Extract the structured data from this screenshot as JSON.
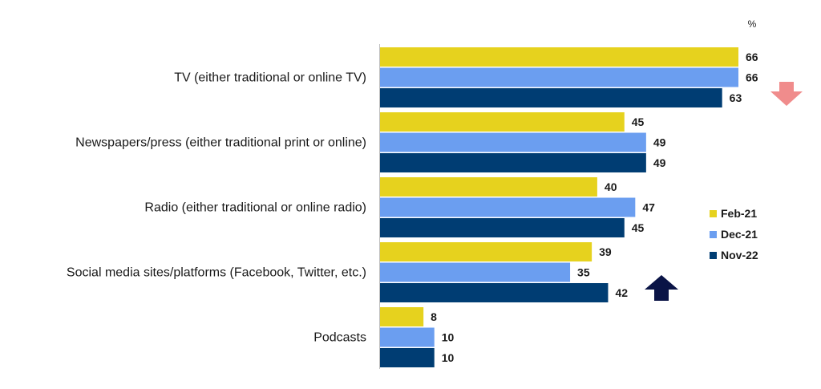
{
  "chart_data": {
    "type": "bar",
    "orientation": "horizontal",
    "unit_label": "%",
    "categories": [
      "TV (either traditional or online TV)",
      "Newspapers/press (either traditional print or online)",
      "Radio (either traditional or online radio)",
      "Social media sites/platforms (Facebook, Twitter, etc.)",
      "Podcasts"
    ],
    "series": [
      {
        "name": "Feb-21",
        "color": "#e6d21e",
        "values": [
          66,
          45,
          40,
          39,
          8
        ]
      },
      {
        "name": "Dec-21",
        "color": "#6b9ef0",
        "values": [
          66,
          49,
          47,
          35,
          10
        ]
      },
      {
        "name": "Nov-22",
        "color": "#003d73",
        "values": [
          63,
          49,
          45,
          42,
          10
        ]
      }
    ],
    "legend_position": "right",
    "annotations": [
      {
        "type": "arrow-down",
        "category": "TV (either traditional or online TV)",
        "color": "#f08c8c"
      },
      {
        "type": "arrow-up",
        "category": "Social media sites/platforms (Facebook, Twitter, etc.)",
        "color": "#0a1446"
      }
    ],
    "xlim": [
      0,
      66
    ],
    "grid": false
  }
}
